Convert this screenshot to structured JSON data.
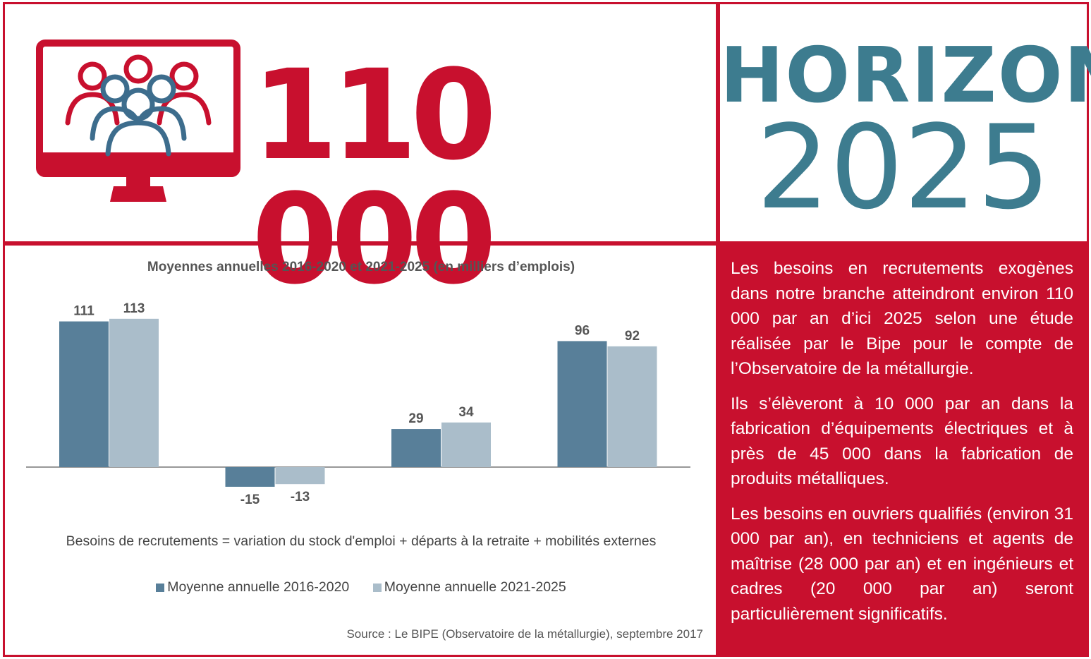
{
  "headline": {
    "figure": "110 000",
    "horizon_word": "HORIZON",
    "horizon_year": "2025",
    "icon": "monitor-people-icon"
  },
  "colors": {
    "brand_red": "#c8102e",
    "teal": "#3d7c8f",
    "series_2016_2020": "#587f99",
    "series_2021_2025": "#aabdca"
  },
  "chart_data": {
    "type": "bar",
    "title": "Moyennes annuelles 2016-2020 et 2021-2025 (en milliers d’emplois)",
    "categories": [
      "",
      "",
      "",
      ""
    ],
    "series": [
      {
        "name": "Moyenne annuelle 2016-2020",
        "values": [
          111,
          -15,
          29,
          96
        ]
      },
      {
        "name": "Moyenne annuelle 2021-2025",
        "values": [
          113,
          -13,
          34,
          92
        ]
      }
    ],
    "ylim": [
      -20,
      120
    ],
    "grid": false,
    "legend_position": "bottom",
    "note": "Besoins de recrutements = variation du stock d'emploi + départs à la retraite + mobilités externes",
    "source": "Source : Le BIPE (Observatoire de la métallurgie), septembre 2017"
  },
  "text_panel": {
    "paragraphs": [
      "Les besoins en recrutements exogènes dans notre branche atteindront environ 110 000 par an d’ici 2025 selon une étude réalisée par le Bipe pour le compte de l’Observatoire de la métallurgie.",
      "Ils s’élèveront à 10 000 par an dans la fabrication d’équipements électriques et à près de 45 000 dans la fabrication de produits métalliques.",
      "Les besoins en ouvriers qualifiés (environ 31 000 par an), en techniciens et agents de maîtrise (28 000 par an) et en ingénieurs et cadres (20 000 par an) seront particulièrement significatifs."
    ]
  }
}
